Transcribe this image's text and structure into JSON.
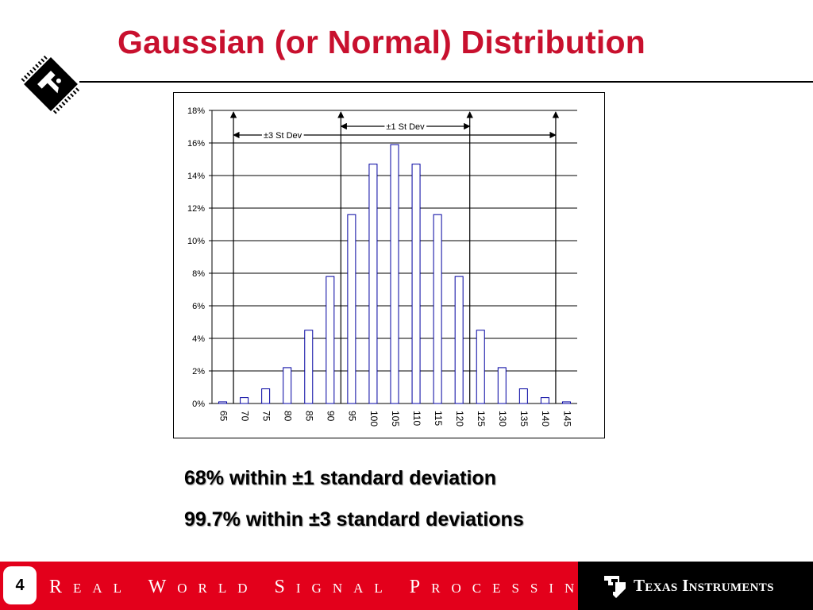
{
  "title": "Gaussian (or Normal) Distribution",
  "chart_data": {
    "type": "bar",
    "categories": [
      "65",
      "70",
      "75",
      "80",
      "85",
      "90",
      "95",
      "100",
      "105",
      "110",
      "115",
      "120",
      "125",
      "130",
      "135",
      "140",
      "145"
    ],
    "values": [
      0.1,
      0.36,
      0.9,
      2.2,
      4.5,
      7.8,
      11.6,
      14.7,
      15.9,
      14.7,
      11.6,
      7.8,
      4.5,
      2.2,
      0.9,
      0.36,
      0.1
    ],
    "ylim": [
      0,
      18
    ],
    "yticks": [
      "0%",
      "2%",
      "4%",
      "6%",
      "8%",
      "10%",
      "12%",
      "14%",
      "16%",
      "18%"
    ],
    "grid": true,
    "bar_color": "#ffffff",
    "bar_edge_color": "#0000a0",
    "annotations": {
      "one_sd": {
        "label": "±1 St Dev",
        "from": 90,
        "to": 120
      },
      "three_sd": {
        "label": "±3 St Dev",
        "from": 65,
        "to": 145
      }
    }
  },
  "summary": {
    "line1": "68% within ±1  standard deviation",
    "line2": "99.7% within ±3 standard deviations"
  },
  "footer": {
    "page_number": "4",
    "tagline": "Real World Signal Processing",
    "trademark": "TM",
    "company": "Texas Instruments"
  },
  "colors": {
    "title": "#c8102e",
    "footer_red": "#e3001b",
    "footer_black": "#000000"
  }
}
